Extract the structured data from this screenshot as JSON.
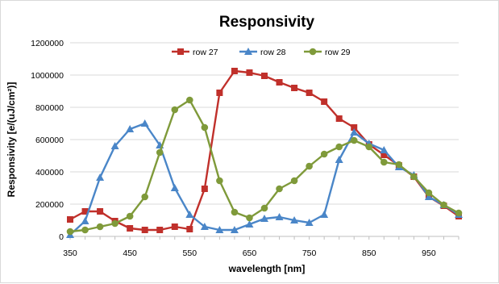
{
  "chart_data": {
    "type": "line",
    "title": "Responsivity",
    "xlabel": "wavelength [nm]",
    "ylabel": "Responsivity [e/(uJ/cm²)]",
    "xlim": [
      350,
      1000
    ],
    "ylim": [
      0,
      1200000
    ],
    "x_ticks": [
      350,
      450,
      550,
      650,
      750,
      850,
      950
    ],
    "x_tick_labels": [
      "350",
      "450",
      "550",
      "650",
      "750",
      "850",
      "950"
    ],
    "y_ticks": [
      0,
      200000,
      400000,
      600000,
      800000,
      1000000,
      1200000
    ],
    "y_tick_labels": [
      "0",
      "200000",
      "400000",
      "600000",
      "800000",
      "1000000",
      "1200000"
    ],
    "grid": "horizontal",
    "legend_position": "top",
    "series": [
      {
        "name": "row 27",
        "color": "#c0302b",
        "marker": "square",
        "x": [
          350,
          375,
          400,
          425,
          450,
          475,
          500,
          525,
          550,
          575,
          600,
          625,
          650,
          675,
          700,
          725,
          750,
          775,
          800,
          825,
          850,
          875,
          900,
          925,
          950,
          975,
          1000
        ],
        "values": [
          105000,
          155000,
          155000,
          95000,
          50000,
          40000,
          40000,
          60000,
          45000,
          295000,
          890000,
          1025000,
          1015000,
          995000,
          955000,
          920000,
          890000,
          835000,
          730000,
          675000,
          570000,
          505000,
          440000,
          370000,
          245000,
          190000,
          125000
        ]
      },
      {
        "name": "row 28",
        "color": "#4a86c8",
        "marker": "triangle",
        "x": [
          350,
          375,
          400,
          425,
          450,
          475,
          500,
          525,
          550,
          575,
          600,
          625,
          650,
          675,
          700,
          725,
          750,
          775,
          800,
          825,
          850,
          875,
          900,
          925,
          950,
          975,
          1000
        ],
        "values": [
          10000,
          95000,
          365000,
          560000,
          665000,
          700000,
          565000,
          300000,
          135000,
          60000,
          40000,
          40000,
          75000,
          110000,
          120000,
          100000,
          85000,
          135000,
          475000,
          645000,
          575000,
          535000,
          430000,
          380000,
          245000,
          195000,
          135000
        ]
      },
      {
        "name": "row 29",
        "color": "#7f9a3a",
        "marker": "circle",
        "x": [
          350,
          375,
          400,
          425,
          450,
          475,
          500,
          525,
          550,
          575,
          600,
          625,
          650,
          675,
          700,
          725,
          750,
          775,
          800,
          825,
          850,
          875,
          900,
          925,
          950,
          975,
          1000
        ],
        "values": [
          30000,
          40000,
          60000,
          80000,
          125000,
          245000,
          520000,
          785000,
          845000,
          675000,
          345000,
          150000,
          115000,
          175000,
          295000,
          345000,
          435000,
          510000,
          555000,
          595000,
          555000,
          460000,
          445000,
          370000,
          270000,
          195000,
          145000
        ]
      }
    ]
  }
}
